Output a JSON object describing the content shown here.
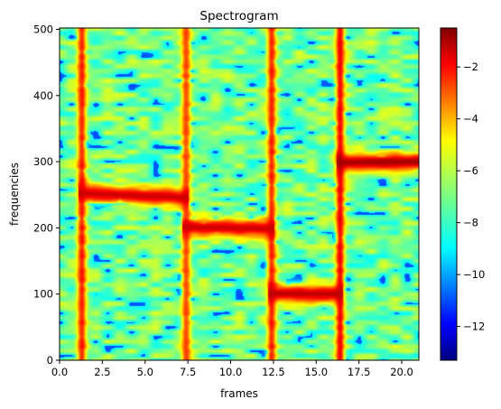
{
  "chart_data": {
    "type": "heatmap",
    "title": "Spectrogram",
    "xlabel": "frames",
    "ylabel": "frequencies",
    "xlim": [
      0,
      21
    ],
    "ylim": [
      0,
      502
    ],
    "x_ticks": [
      0.0,
      2.5,
      5.0,
      7.5,
      10.0,
      12.5,
      15.0,
      17.5,
      20.0
    ],
    "x_tick_labels": [
      "0.0",
      "2.5",
      "5.0",
      "7.5",
      "10.0",
      "12.5",
      "15.0",
      "17.5",
      "20.0"
    ],
    "y_ticks": [
      0,
      100,
      200,
      300,
      400,
      500
    ],
    "y_tick_labels": [
      "0",
      "100",
      "200",
      "300",
      "400",
      "500"
    ],
    "colormap": "jet",
    "colorbar": {
      "range": [
        -13.3,
        -0.5
      ],
      "ticks": [
        -2,
        -4,
        -6,
        -8,
        -10,
        -12
      ],
      "tick_labels": [
        "−2",
        "−4",
        "−6",
        "−8",
        "−10",
        "−12"
      ]
    },
    "background_level": -7.2,
    "vertical_bands": [
      {
        "frame": 1.3,
        "level": -2.5
      },
      {
        "frame": 7.4,
        "level": -3.0
      },
      {
        "frame": 12.4,
        "level": -2.5
      },
      {
        "frame": 16.4,
        "level": -2.0
      }
    ],
    "tones": [
      {
        "frame_start": 1.3,
        "frame_end": 7.4,
        "freq_start": 252,
        "freq_end": 246,
        "level": -1.5
      },
      {
        "frame_start": 7.4,
        "frame_end": 12.4,
        "freq_start": 201,
        "freq_end": 199,
        "level": -1.5
      },
      {
        "frame_start": 12.4,
        "frame_end": 16.4,
        "freq_start": 101,
        "freq_end": 100,
        "level": -1.3
      },
      {
        "frame_start": 16.4,
        "frame_end": 21.0,
        "freq_start": 299,
        "freq_end": 300,
        "level": -1.0
      }
    ]
  }
}
